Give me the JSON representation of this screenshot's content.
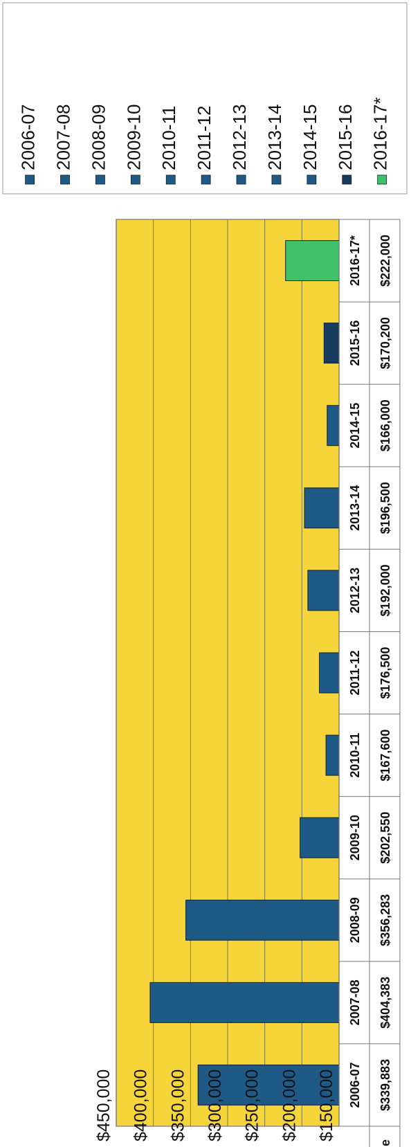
{
  "chart_data": {
    "type": "bar",
    "categories": [
      "2006-07",
      "2007-08",
      "2008-09",
      "2009-10",
      "2010-11",
      "2011-12",
      "2012-13",
      "2013-14",
      "2014-15",
      "2015-16",
      "2016-17*"
    ],
    "series": [
      {
        "name": "Value",
        "values": [
          339883,
          404383,
          356283,
          202550,
          167600,
          176500,
          192000,
          196500,
          166000,
          170200,
          222000
        ],
        "value_labels": [
          "$339,883",
          "$404,383",
          "$356,283",
          "$202,550",
          "$167,600",
          "$176,500",
          "$192,000",
          "$196,500",
          "$166,000",
          "$170,200",
          "$222,000"
        ]
      }
    ],
    "ylim": [
      150000,
      450000
    ],
    "yticks": [
      150000,
      200000,
      250000,
      300000,
      350000,
      400000,
      450000
    ],
    "ytick_labels": [
      "$150,000",
      "$200,000",
      "$250,000",
      "$300,000",
      "$350,000",
      "$400,000",
      "$450,000"
    ],
    "data_table": true,
    "grid": true,
    "legend_position": "right",
    "legend_entries": [
      "2006-07",
      "2007-08",
      "2008-09",
      "2009-10",
      "2010-11",
      "2011-12",
      "2012-13",
      "2013-14",
      "2014-15",
      "2015-16",
      "2016-17*"
    ],
    "bar_colors": [
      "#1f5a87",
      "#1f5a87",
      "#1f5a87",
      "#1f5a87",
      "#1f5a87",
      "#1f5a87",
      "#1f5a87",
      "#1f5a87",
      "#1f5a87",
      "#173d5e",
      "#3fc06a"
    ],
    "plot_background": "#f5d53a",
    "table_legend_color": "#1f5a87",
    "title": "",
    "xlabel": "",
    "ylabel": ""
  }
}
